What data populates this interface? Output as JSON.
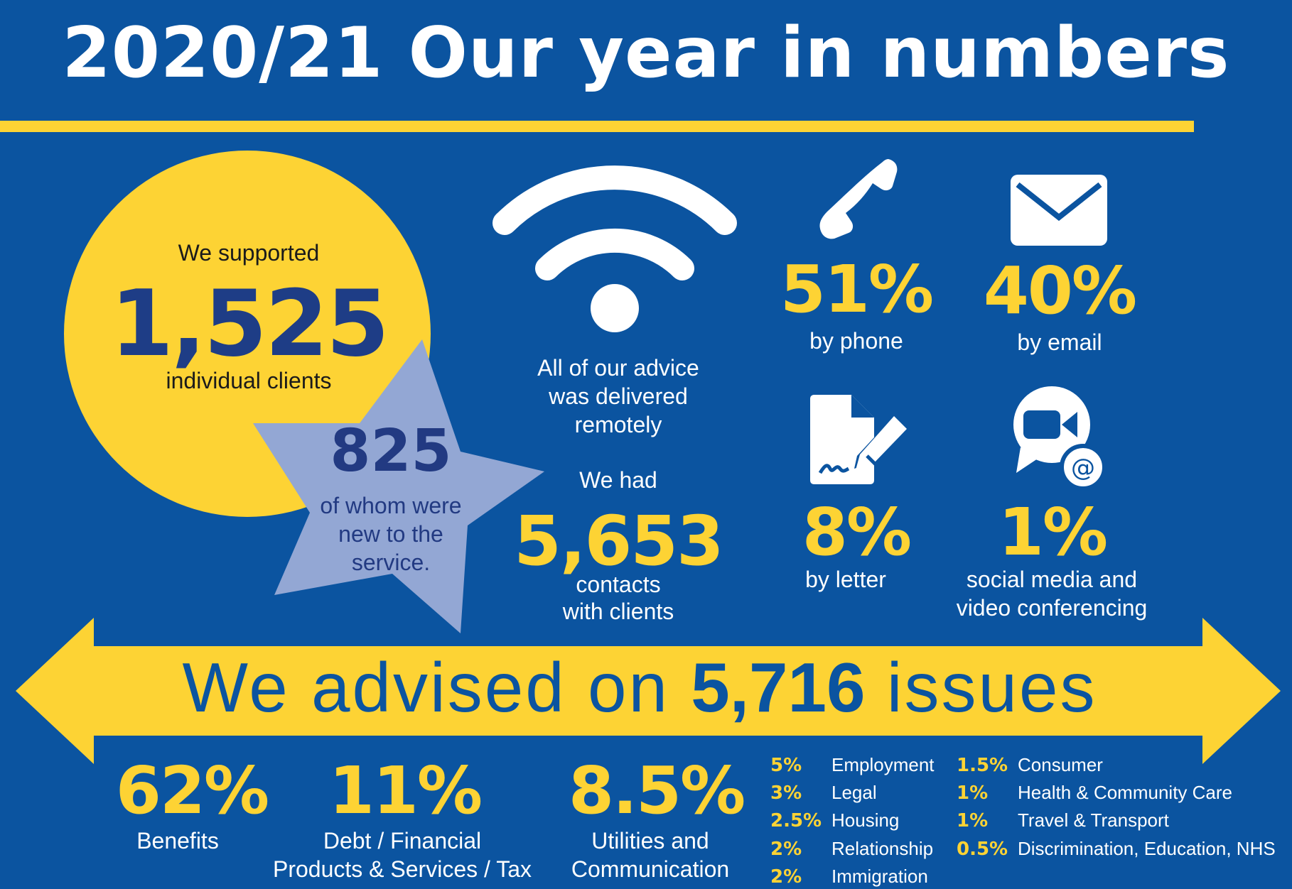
{
  "title": "2020/21 Our year in numbers",
  "clients": {
    "intro": "We supported",
    "number": "1,525",
    "label": "individual clients"
  },
  "new_clients": {
    "number": "825",
    "label_lines": [
      "of whom were",
      "new to the",
      "service."
    ]
  },
  "remote": {
    "lines": [
      "All of our advice",
      "was delivered",
      "remotely"
    ]
  },
  "contacts": {
    "intro": "We had",
    "number": "5,653",
    "label_lines": [
      "contacts",
      "with clients"
    ]
  },
  "channels": [
    {
      "icon": "phone-icon",
      "percent": "51%",
      "label_lines": [
        "by phone"
      ]
    },
    {
      "icon": "envelope-icon",
      "percent": "40%",
      "label_lines": [
        "by email"
      ]
    },
    {
      "icon": "signed-letter-icon",
      "percent": "8%",
      "label_lines": [
        "by letter"
      ]
    },
    {
      "icon": "video-chat-icon",
      "percent": "1%",
      "label_lines": [
        "social media and",
        "video conferencing"
      ]
    }
  ],
  "issues": {
    "prefix": "We advised on ",
    "number": "5,716",
    "suffix": " issues"
  },
  "top_issues": [
    {
      "percent": "62%",
      "label_lines": [
        "Benefits"
      ]
    },
    {
      "percent": "11%",
      "label_lines": [
        "Debt / Financial",
        "Products & Services / Tax"
      ]
    },
    {
      "percent": "8.5%",
      "label_lines": [
        "Utilities and",
        "Communication"
      ]
    }
  ],
  "other_issues_col1": [
    {
      "percent": "5%",
      "name": "Employment"
    },
    {
      "percent": "3%",
      "name": "Legal"
    },
    {
      "percent": "2.5%",
      "name": "Housing"
    },
    {
      "percent": "2%",
      "name": "Relationship"
    },
    {
      "percent": "2%",
      "name": "Immigration"
    }
  ],
  "other_issues_col2": [
    {
      "percent": "1.5%",
      "name": "Consumer"
    },
    {
      "percent": "1%",
      "name": "Health & Community Care"
    },
    {
      "percent": "1%",
      "name": "Travel & Transport"
    },
    {
      "percent": "0.5%",
      "name": "Discrimination, Education, NHS"
    }
  ],
  "colors": {
    "background": "#0b54a0",
    "yellow": "#fdd334",
    "star": "#93a7d4",
    "navy": "#1e3d86"
  }
}
